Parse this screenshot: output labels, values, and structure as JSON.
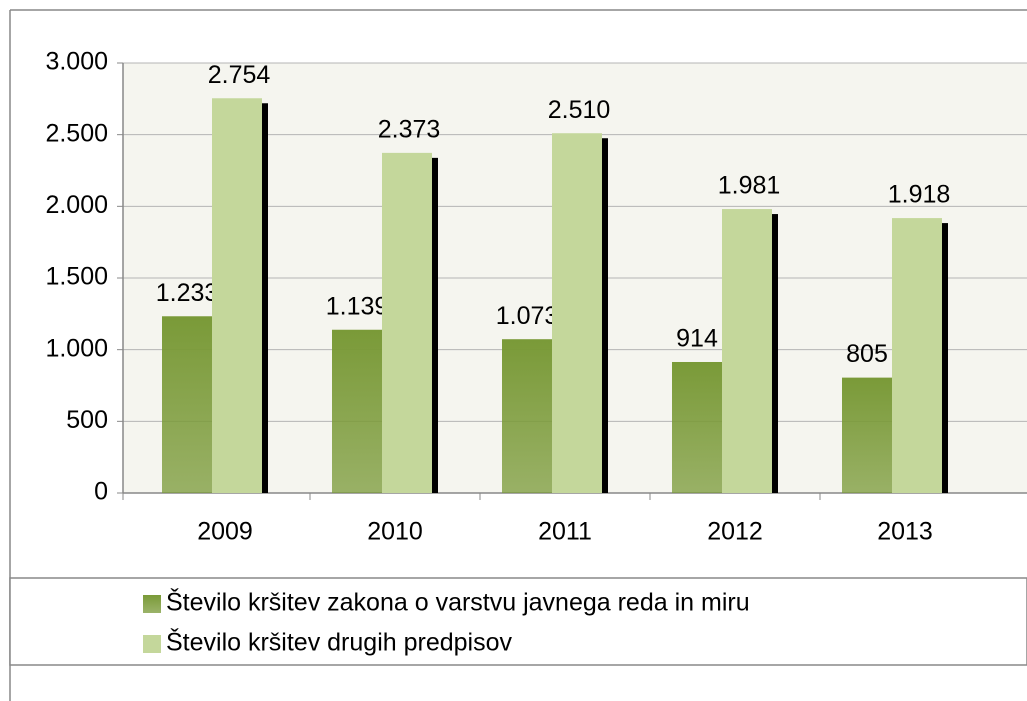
{
  "chart_data": {
    "type": "bar",
    "categories": [
      "2009",
      "2010",
      "2011",
      "2012",
      "2013"
    ],
    "series": [
      {
        "name": "Število kršitev zakona o varstvu javnega reda in miru",
        "color": "#7a9a38",
        "values": [
          1233,
          1139,
          1073,
          914,
          805
        ],
        "value_labels": [
          "1.233",
          "1.139",
          "1.073",
          "914",
          "805"
        ]
      },
      {
        "name": "Število kršitev drugih predpisov",
        "color": "#c4d79b",
        "values": [
          2754,
          2373,
          2510,
          1981,
          1918
        ],
        "value_labels": [
          "2.754",
          "2.373",
          "2.510",
          "1.981",
          "1.918"
        ]
      }
    ],
    "ylim": [
      0,
      3000
    ],
    "yticks": [
      0,
      500,
      {
        "value": 1000,
        "label": "1.000"
      },
      {
        "value": 1500,
        "label": "1.500"
      },
      {
        "value": 2000,
        "label": "2.000"
      },
      {
        "value": 2500,
        "label": "2.500"
      },
      {
        "value": 3000,
        "label": "3.000"
      }
    ],
    "grid": true
  }
}
